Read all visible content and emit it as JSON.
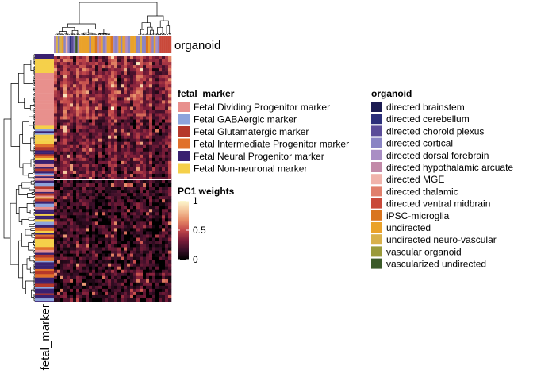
{
  "chart_data": {
    "type": "heatmap",
    "column_annotation_label": "organoid",
    "row_annotation_label": "fetal_marker",
    "fill_scale": {
      "title": "PC1 weights",
      "range": [
        0,
        1
      ],
      "ticks": [
        {
          "value": 1,
          "label": "1"
        },
        {
          "value": 0.5,
          "label": "0.5"
        },
        {
          "value": 0,
          "label": "0"
        }
      ],
      "colors": [
        "#000000",
        "#3b0f29",
        "#7d1d3a",
        "#c2474a",
        "#e58a66",
        "#f4c49a",
        "#fdf9cf"
      ]
    },
    "fetal_marker_legend": {
      "title": "fetal_marker",
      "items": [
        {
          "label": "Fetal Dividing Progenitor marker",
          "color": "#e8908d"
        },
        {
          "label": "Fetal GABAergic marker",
          "color": "#8da4dc"
        },
        {
          "label": "Fetal Glutamatergic marker",
          "color": "#b5382b"
        },
        {
          "label": "Fetal Intermediate Progenitor marker",
          "color": "#e0702b"
        },
        {
          "label": "Fetal Neural Progenitor marker",
          "color": "#3a2170"
        },
        {
          "label": "Fetal Non-neuronal marker",
          "color": "#f5d04a"
        }
      ]
    },
    "organoid_legend": {
      "title": "organoid",
      "items": [
        {
          "label": "directed brainstem",
          "color": "#1b1b52"
        },
        {
          "label": "directed cerebellum",
          "color": "#2c2f7a"
        },
        {
          "label": "directed choroid plexus",
          "color": "#5a4b98"
        },
        {
          "label": "directed cortical",
          "color": "#8a84c4"
        },
        {
          "label": "directed dorsal forebrain",
          "color": "#a98ec4"
        },
        {
          "label": "directed hypothalamic arcuate",
          "color": "#c28aa8"
        },
        {
          "label": "directed MGE",
          "color": "#f0b3ab"
        },
        {
          "label": "directed thalamic",
          "color": "#e07f6c"
        },
        {
          "label": "directed ventral midbrain",
          "color": "#c9493a"
        },
        {
          "label": "iPSC-microglia",
          "color": "#d9751f"
        },
        {
          "label": "undirected",
          "color": "#eaa22a"
        },
        {
          "label": "undirected neuro-vascular",
          "color": "#d8b04a"
        },
        {
          "label": "vascular organoid",
          "color": "#9a9a3a"
        },
        {
          "label": "vascularized undirected",
          "color": "#3b5a28"
        }
      ]
    }
  }
}
